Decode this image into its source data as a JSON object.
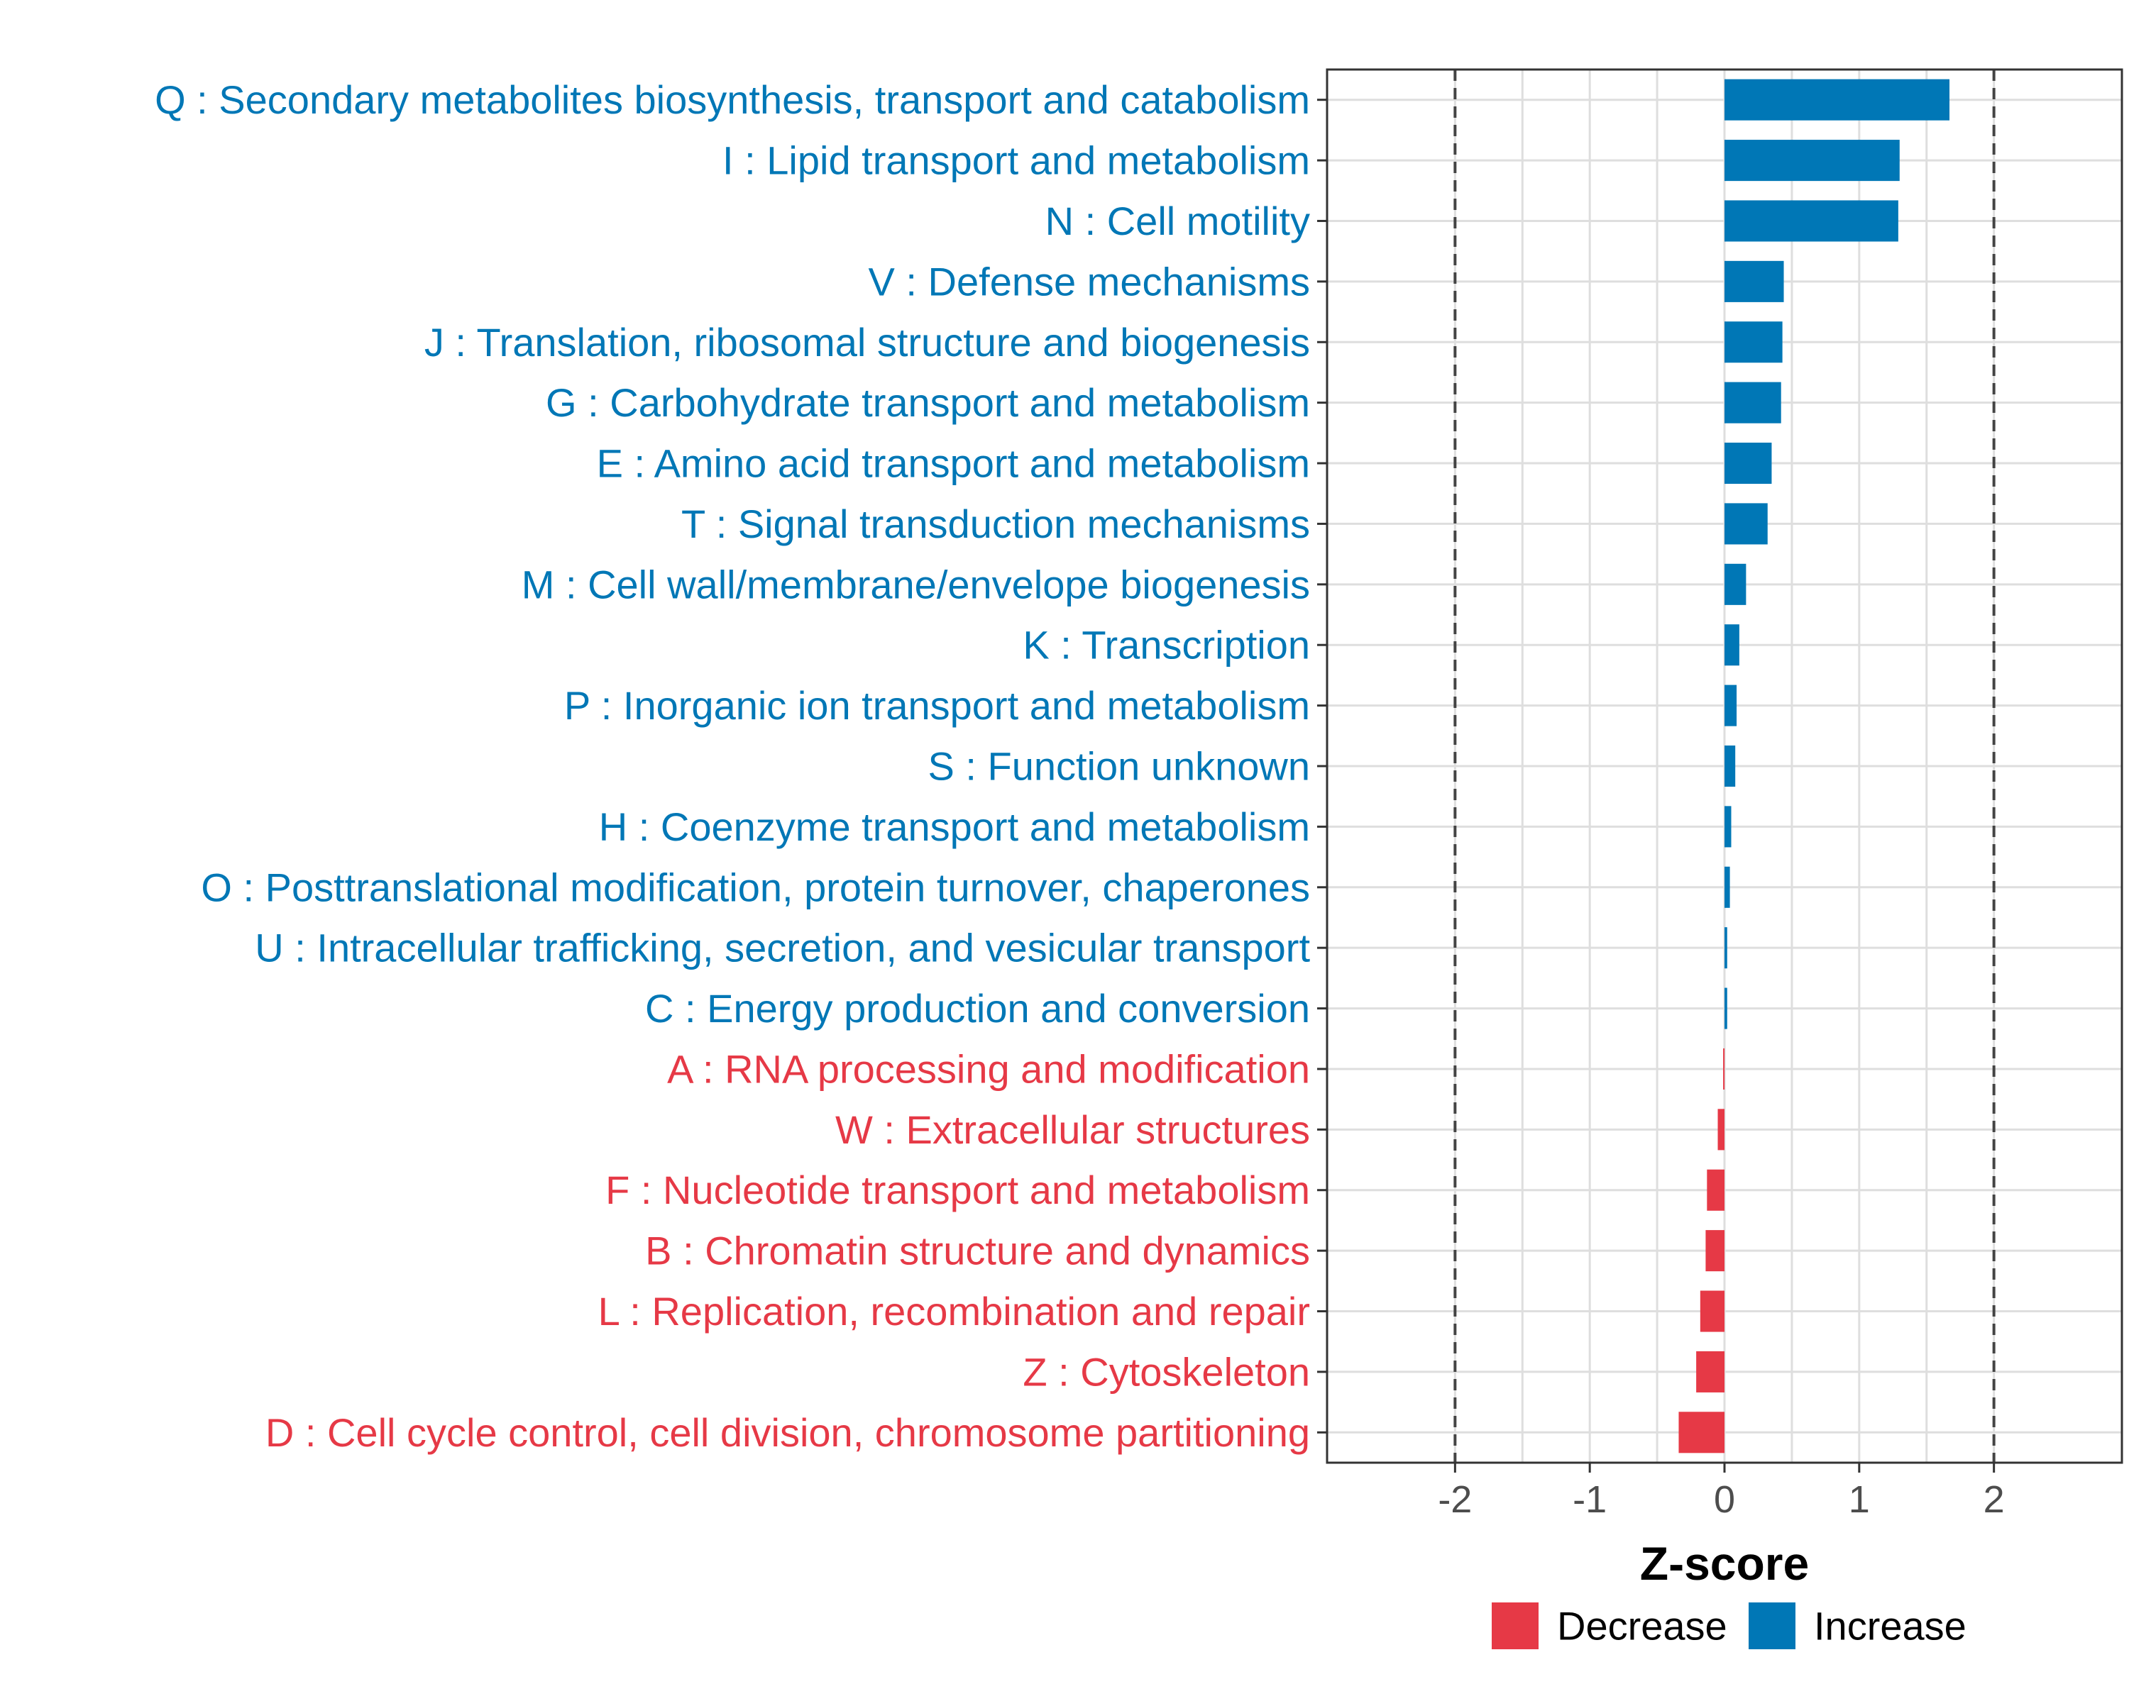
{
  "chart_data": {
    "type": "bar",
    "orientation": "horizontal",
    "xlabel": "Z-score",
    "ylabel": "",
    "xlim": [
      -2.95,
      2.95
    ],
    "xticks": [
      -2,
      -1,
      0,
      1,
      2
    ],
    "xtick_labels": [
      "-2",
      "-1",
      "0",
      "1",
      "2"
    ],
    "reference_lines": [
      -2,
      2
    ],
    "grid": true,
    "legend_position": "bottom",
    "colors": {
      "Decrease": "#e63946",
      "Increase": "#0077b6"
    },
    "legend": [
      {
        "name": "Decrease",
        "color": "#e63946"
      },
      {
        "name": "Increase",
        "color": "#0077b6"
      }
    ],
    "categories": [
      "Q : Secondary metabolites biosynthesis, transport and catabolism",
      "I : Lipid transport and metabolism",
      "N : Cell motility",
      "V : Defense mechanisms",
      "J : Translation, ribosomal structure and biogenesis",
      "G : Carbohydrate transport and metabolism",
      "E : Amino acid transport and metabolism",
      "T : Signal transduction mechanisms",
      "M : Cell wall/membrane/envelope biogenesis",
      "K : Transcription",
      "P : Inorganic ion transport and metabolism",
      "S : Function unknown",
      "H : Coenzyme transport and metabolism",
      "O : Posttranslational modification, protein turnover, chaperones",
      "U : Intracellular trafficking, secretion, and vesicular transport",
      "C : Energy production and conversion",
      "A : RNA processing and modification",
      "W : Extracellular structures",
      "F : Nucleotide transport and metabolism",
      "B : Chromatin structure and dynamics",
      "L : Replication, recombination and repair",
      "Z : Cytoskeleton",
      "D : Cell cycle control, cell division, chromosome partitioning"
    ],
    "values": [
      1.67,
      1.3,
      1.29,
      0.44,
      0.43,
      0.42,
      0.35,
      0.32,
      0.16,
      0.11,
      0.09,
      0.08,
      0.05,
      0.04,
      0.02,
      0.02,
      -0.01,
      -0.05,
      -0.13,
      -0.14,
      -0.18,
      -0.21,
      -0.34
    ],
    "direction": [
      "Increase",
      "Increase",
      "Increase",
      "Increase",
      "Increase",
      "Increase",
      "Increase",
      "Increase",
      "Increase",
      "Increase",
      "Increase",
      "Increase",
      "Increase",
      "Increase",
      "Increase",
      "Increase",
      "Decrease",
      "Decrease",
      "Decrease",
      "Decrease",
      "Decrease",
      "Decrease",
      "Decrease"
    ]
  }
}
